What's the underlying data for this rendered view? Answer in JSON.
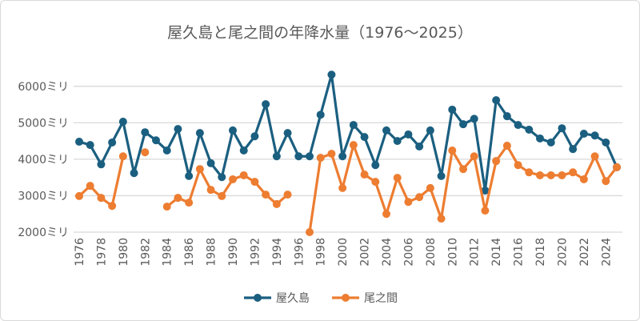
{
  "chart_data": {
    "type": "line",
    "title": "屋久島と尾之間の年降水量（1976～2025）",
    "xlabel": "",
    "ylabel": "",
    "ylim": [
      2000,
      6400
    ],
    "y_ticks": [
      "2000ミリ",
      "3000ミリ",
      "4000ミリ",
      "5000ミリ",
      "6000ミリ"
    ],
    "y_tick_values": [
      2000,
      3000,
      4000,
      5000,
      6000
    ],
    "grid": true,
    "legend_position": "bottom",
    "x": [
      1976,
      1977,
      1978,
      1979,
      1980,
      1981,
      1982,
      1983,
      1984,
      1985,
      1986,
      1987,
      1988,
      1989,
      1990,
      1991,
      1992,
      1993,
      1994,
      1995,
      1996,
      1997,
      1998,
      1999,
      2000,
      2001,
      2002,
      2003,
      2004,
      2005,
      2006,
      2007,
      2008,
      2009,
      2010,
      2011,
      2012,
      2013,
      2014,
      2015,
      2016,
      2017,
      2018,
      2019,
      2020,
      2021,
      2022,
      2023,
      2024,
      2025
    ],
    "x_tick_labels": [
      "1976",
      "1978",
      "1980",
      "1982",
      "1984",
      "1986",
      "1988",
      "1990",
      "1992",
      "1994",
      "1996",
      "1998",
      "2000",
      "2002",
      "2004",
      "2006",
      "2008",
      "2010",
      "2012",
      "2014",
      "2016",
      "2018",
      "2020",
      "2022",
      "2024"
    ],
    "series": [
      {
        "name": "屋久島",
        "color": "#1b5f80",
        "values": [
          4480,
          4390,
          3860,
          4460,
          5030,
          3620,
          4740,
          4520,
          4240,
          4830,
          3540,
          4720,
          3890,
          3510,
          4790,
          4240,
          4630,
          5510,
          4080,
          4720,
          4080,
          4080,
          5220,
          6320,
          4080,
          4940,
          4610,
          3840,
          4790,
          4500,
          4680,
          4350,
          4790,
          3540,
          5360,
          4960,
          5110,
          3140,
          5620,
          5180,
          4940,
          4810,
          4570,
          4460,
          4850,
          4280,
          4700,
          4650,
          4460,
          3780
        ]
      },
      {
        "name": "尾之間",
        "color": "#ed7d31",
        "values": [
          2990,
          3270,
          2940,
          2720,
          4080,
          null,
          4190,
          null,
          2700,
          2940,
          2810,
          3730,
          3160,
          2990,
          3450,
          3560,
          3380,
          3030,
          2770,
          3030,
          null,
          2000,
          4040,
          4150,
          3210,
          4390,
          3580,
          3380,
          2500,
          3490,
          2830,
          2960,
          3210,
          2370,
          4240,
          3730,
          4080,
          2590,
          3950,
          4370,
          3840,
          3640,
          3560,
          3560,
          3560,
          3640,
          3450,
          4080,
          3400,
          3780
        ]
      }
    ]
  }
}
